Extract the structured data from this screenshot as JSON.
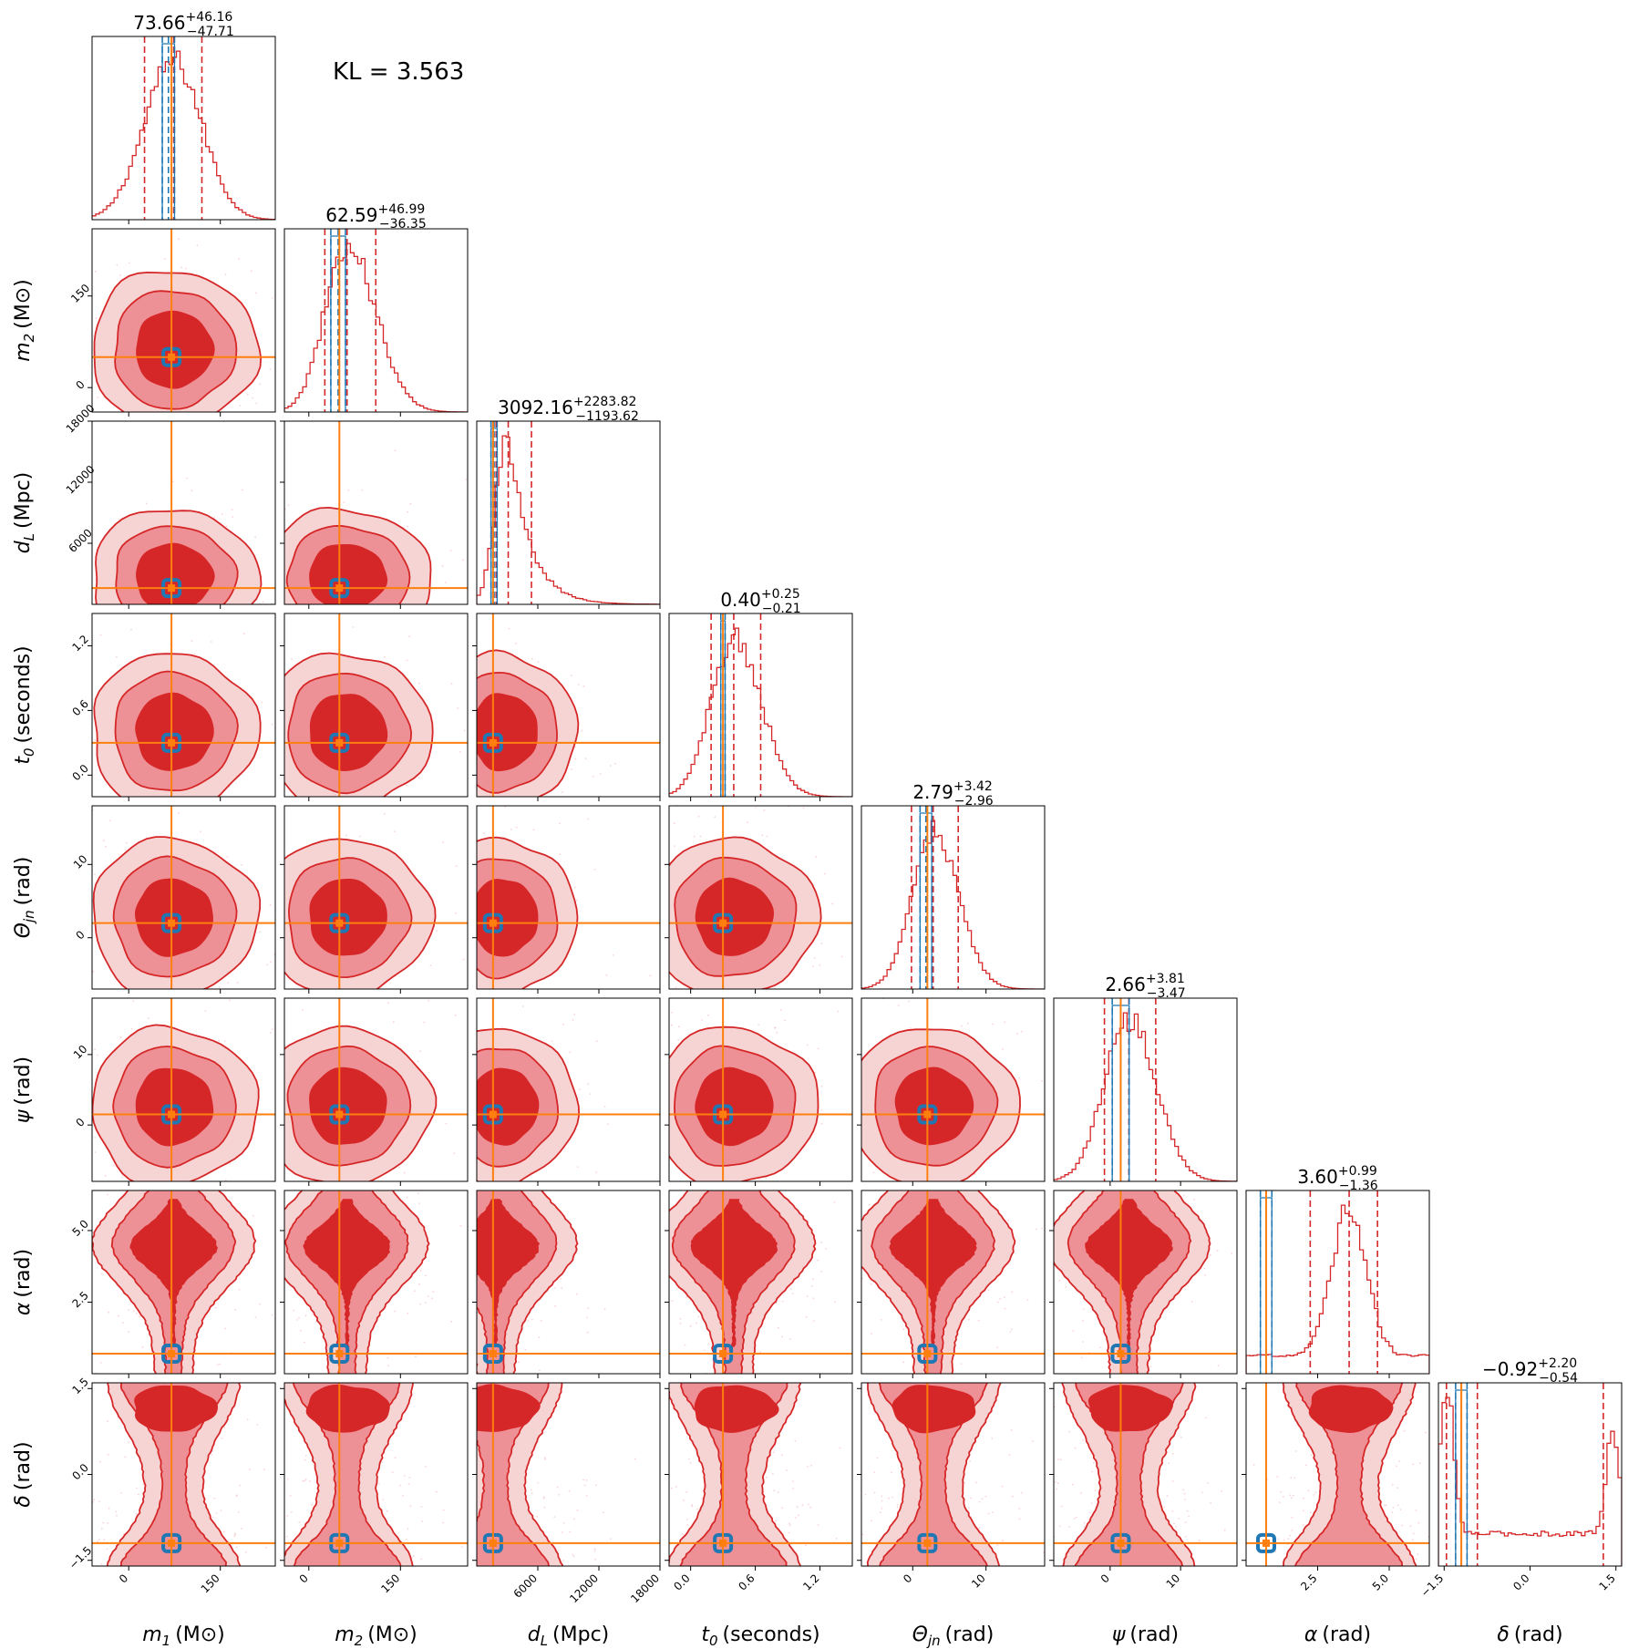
{
  "kl_label": "KL = 3.563",
  "colors": {
    "posterior_a": "#d62728",
    "posterior_b": "#1f77b4",
    "truth": "#ff7f0e",
    "contour_outer": "#f7d4d4",
    "contour_mid": "#ee9196",
    "contour_inner": "#d62728"
  },
  "chart_data": {
    "type": "corner",
    "params": [
      {
        "label_tex": "m",
        "label_sub": "1",
        "label_unit": "(M⊙)",
        "range": [
          -60,
          240
        ],
        "ticks": [
          0,
          150
        ],
        "tick_labels": [
          "0",
          "150"
        ],
        "truth": 70,
        "title_value": "73.66",
        "title_plus": "+46.16",
        "title_minus": "−47.71",
        "q_a": [
          25.9,
          73.66,
          119.8
        ],
        "q_b": [
          55,
          65,
          75
        ]
      },
      {
        "label_tex": "m",
        "label_sub": "2",
        "label_unit": "(M⊙)",
        "range": [
          -40,
          260
        ],
        "ticks": [
          0,
          150
        ],
        "tick_labels": [
          "0",
          "150"
        ],
        "truth": 50,
        "title_value": "62.59",
        "title_plus": "+46.99",
        "title_minus": "−36.35",
        "q_a": [
          26.2,
          62.59,
          109.6
        ],
        "q_b": [
          36,
          48,
          60
        ]
      },
      {
        "label_tex": "d",
        "label_sub": "L",
        "label_unit": "(Mpc)",
        "range": [
          0,
          18000
        ],
        "ticks": [
          6000,
          12000,
          18000
        ],
        "tick_labels": [
          "6000",
          "12000",
          "18000"
        ],
        "truth": 1600,
        "title_value": "3092.16",
        "title_plus": "+2283.82",
        "title_minus": "−1193.62",
        "q_a": [
          1898.5,
          3092.16,
          5376
        ],
        "q_b": [
          1400,
          1700,
          2000
        ]
      },
      {
        "label_tex": "t",
        "label_sub": "0",
        "label_unit": "(seconds)",
        "range": [
          -0.2,
          1.5
        ],
        "ticks": [
          0.0,
          0.6,
          1.2
        ],
        "tick_labels": [
          "0.0",
          "0.6",
          "1.2"
        ],
        "truth": 0.3,
        "title_value": "0.40",
        "title_plus": "+0.25",
        "title_minus": "−0.21",
        "q_a": [
          0.19,
          0.4,
          0.65
        ],
        "q_b": [
          0.28,
          0.3,
          0.32
        ]
      },
      {
        "label_tex": "Θ",
        "label_sub": "jn",
        "label_unit": "(rad)",
        "range": [
          -7,
          18
        ],
        "ticks": [
          0,
          10
        ],
        "tick_labels": [
          "0",
          "10"
        ],
        "truth": 2,
        "title_value": "2.79",
        "title_plus": "+3.42",
        "title_minus": "−2.96",
        "q_a": [
          -0.17,
          2.79,
          6.21
        ],
        "q_b": [
          1.0,
          1.8,
          2.6
        ]
      },
      {
        "label_tex": "ψ",
        "label_sub": "",
        "label_unit": "(rad)",
        "range": [
          -8,
          18
        ],
        "ticks": [
          0,
          10
        ],
        "tick_labels": [
          "0",
          "10"
        ],
        "truth": 1.5,
        "title_value": "2.66",
        "title_plus": "+3.81",
        "title_minus": "−3.47",
        "q_a": [
          -0.81,
          2.66,
          6.47
        ],
        "q_b": [
          0.3,
          1.5,
          2.7
        ]
      },
      {
        "label_tex": "α",
        "label_sub": "",
        "label_unit": "(rad)",
        "range": [
          0,
          6.4
        ],
        "ticks": [
          2.5,
          5.0
        ],
        "tick_labels": [
          "2.5",
          "5.0"
        ],
        "truth": 0.7,
        "title_value": "3.60",
        "title_plus": "+0.99",
        "title_minus": "−1.36",
        "q_a": [
          2.24,
          3.6,
          4.59
        ],
        "q_b": [
          0.5,
          0.7,
          0.9
        ]
      },
      {
        "label_tex": "δ",
        "label_sub": "",
        "label_unit": "(rad)",
        "range": [
          -1.6,
          1.6
        ],
        "ticks": [
          -1.5,
          0.0,
          1.5
        ],
        "tick_labels": [
          "−1.5",
          "0.0",
          "1.5"
        ],
        "truth": -1.2,
        "title_value": "−0.92",
        "title_plus": "+2.20",
        "title_minus": "−0.54",
        "q_a": [
          -1.46,
          -0.92,
          1.28
        ],
        "q_b": [
          -1.3,
          -1.2,
          -1.1
        ]
      }
    ]
  }
}
